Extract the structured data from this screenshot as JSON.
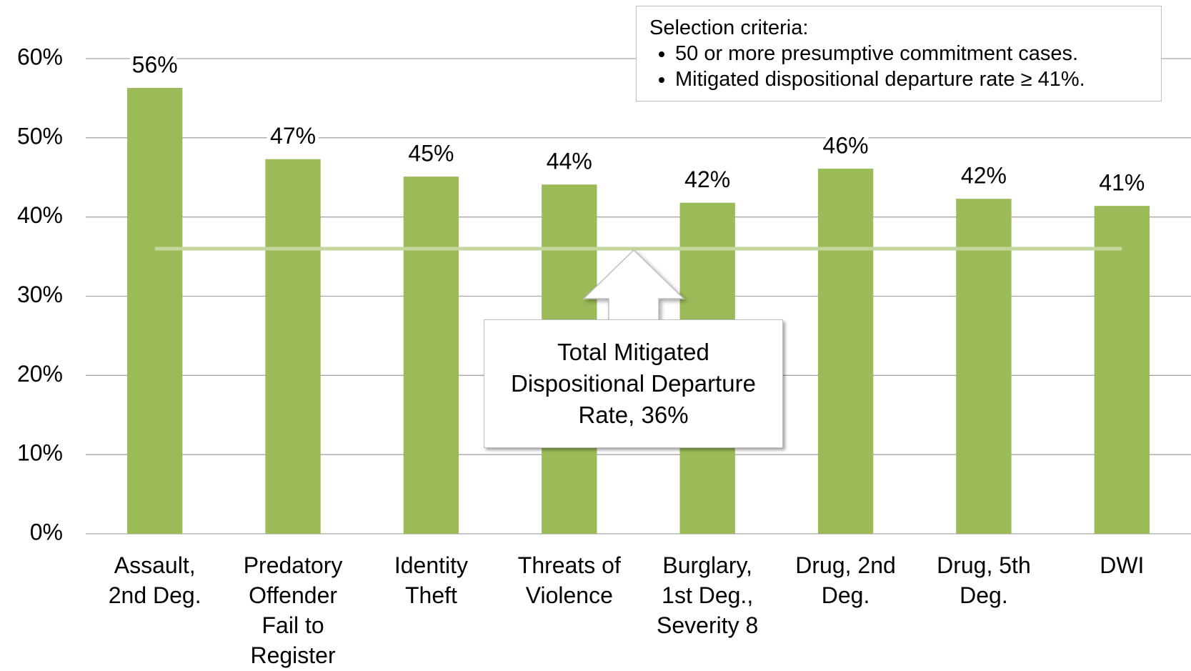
{
  "chart_data": {
    "type": "bar",
    "categories": [
      "Assault, 2nd Deg.",
      "Predatory Offender Fail to Register",
      "Identity Theft",
      "Threats of Violence",
      "Burglary, 1st Deg., Severity 8",
      "Drug, 2nd Deg.",
      "Drug, 5th Deg.",
      "DWI"
    ],
    "values": [
      56.3,
      47.3,
      45.1,
      44.1,
      41.8,
      46.1,
      42.3,
      41.4
    ],
    "value_labels": [
      "56%",
      "47%",
      "45%",
      "44%",
      "42%",
      "46%",
      "42%",
      "41%"
    ],
    "color": "#9bbb59",
    "ylim": [
      0,
      60
    ],
    "yticks": [
      {
        "value": 0,
        "label": "0%"
      },
      {
        "value": 10,
        "label": "10%"
      },
      {
        "value": 20,
        "label": "20%"
      },
      {
        "value": 30,
        "label": "30%"
      },
      {
        "value": 40,
        "label": "40%"
      },
      {
        "value": 50,
        "label": "50%"
      },
      {
        "value": 60,
        "label": "60%"
      }
    ],
    "grid": true,
    "reference_line": {
      "value": 36,
      "label": "Total Mitigated Dispositional Departure Rate, 36%",
      "color": "#c3d69b"
    },
    "selection_criteria": {
      "title": "Selection criteria:",
      "items": [
        "50 or more presumptive commitment cases.",
        "Mitigated dispositional departure rate ≥ 41%."
      ]
    }
  }
}
